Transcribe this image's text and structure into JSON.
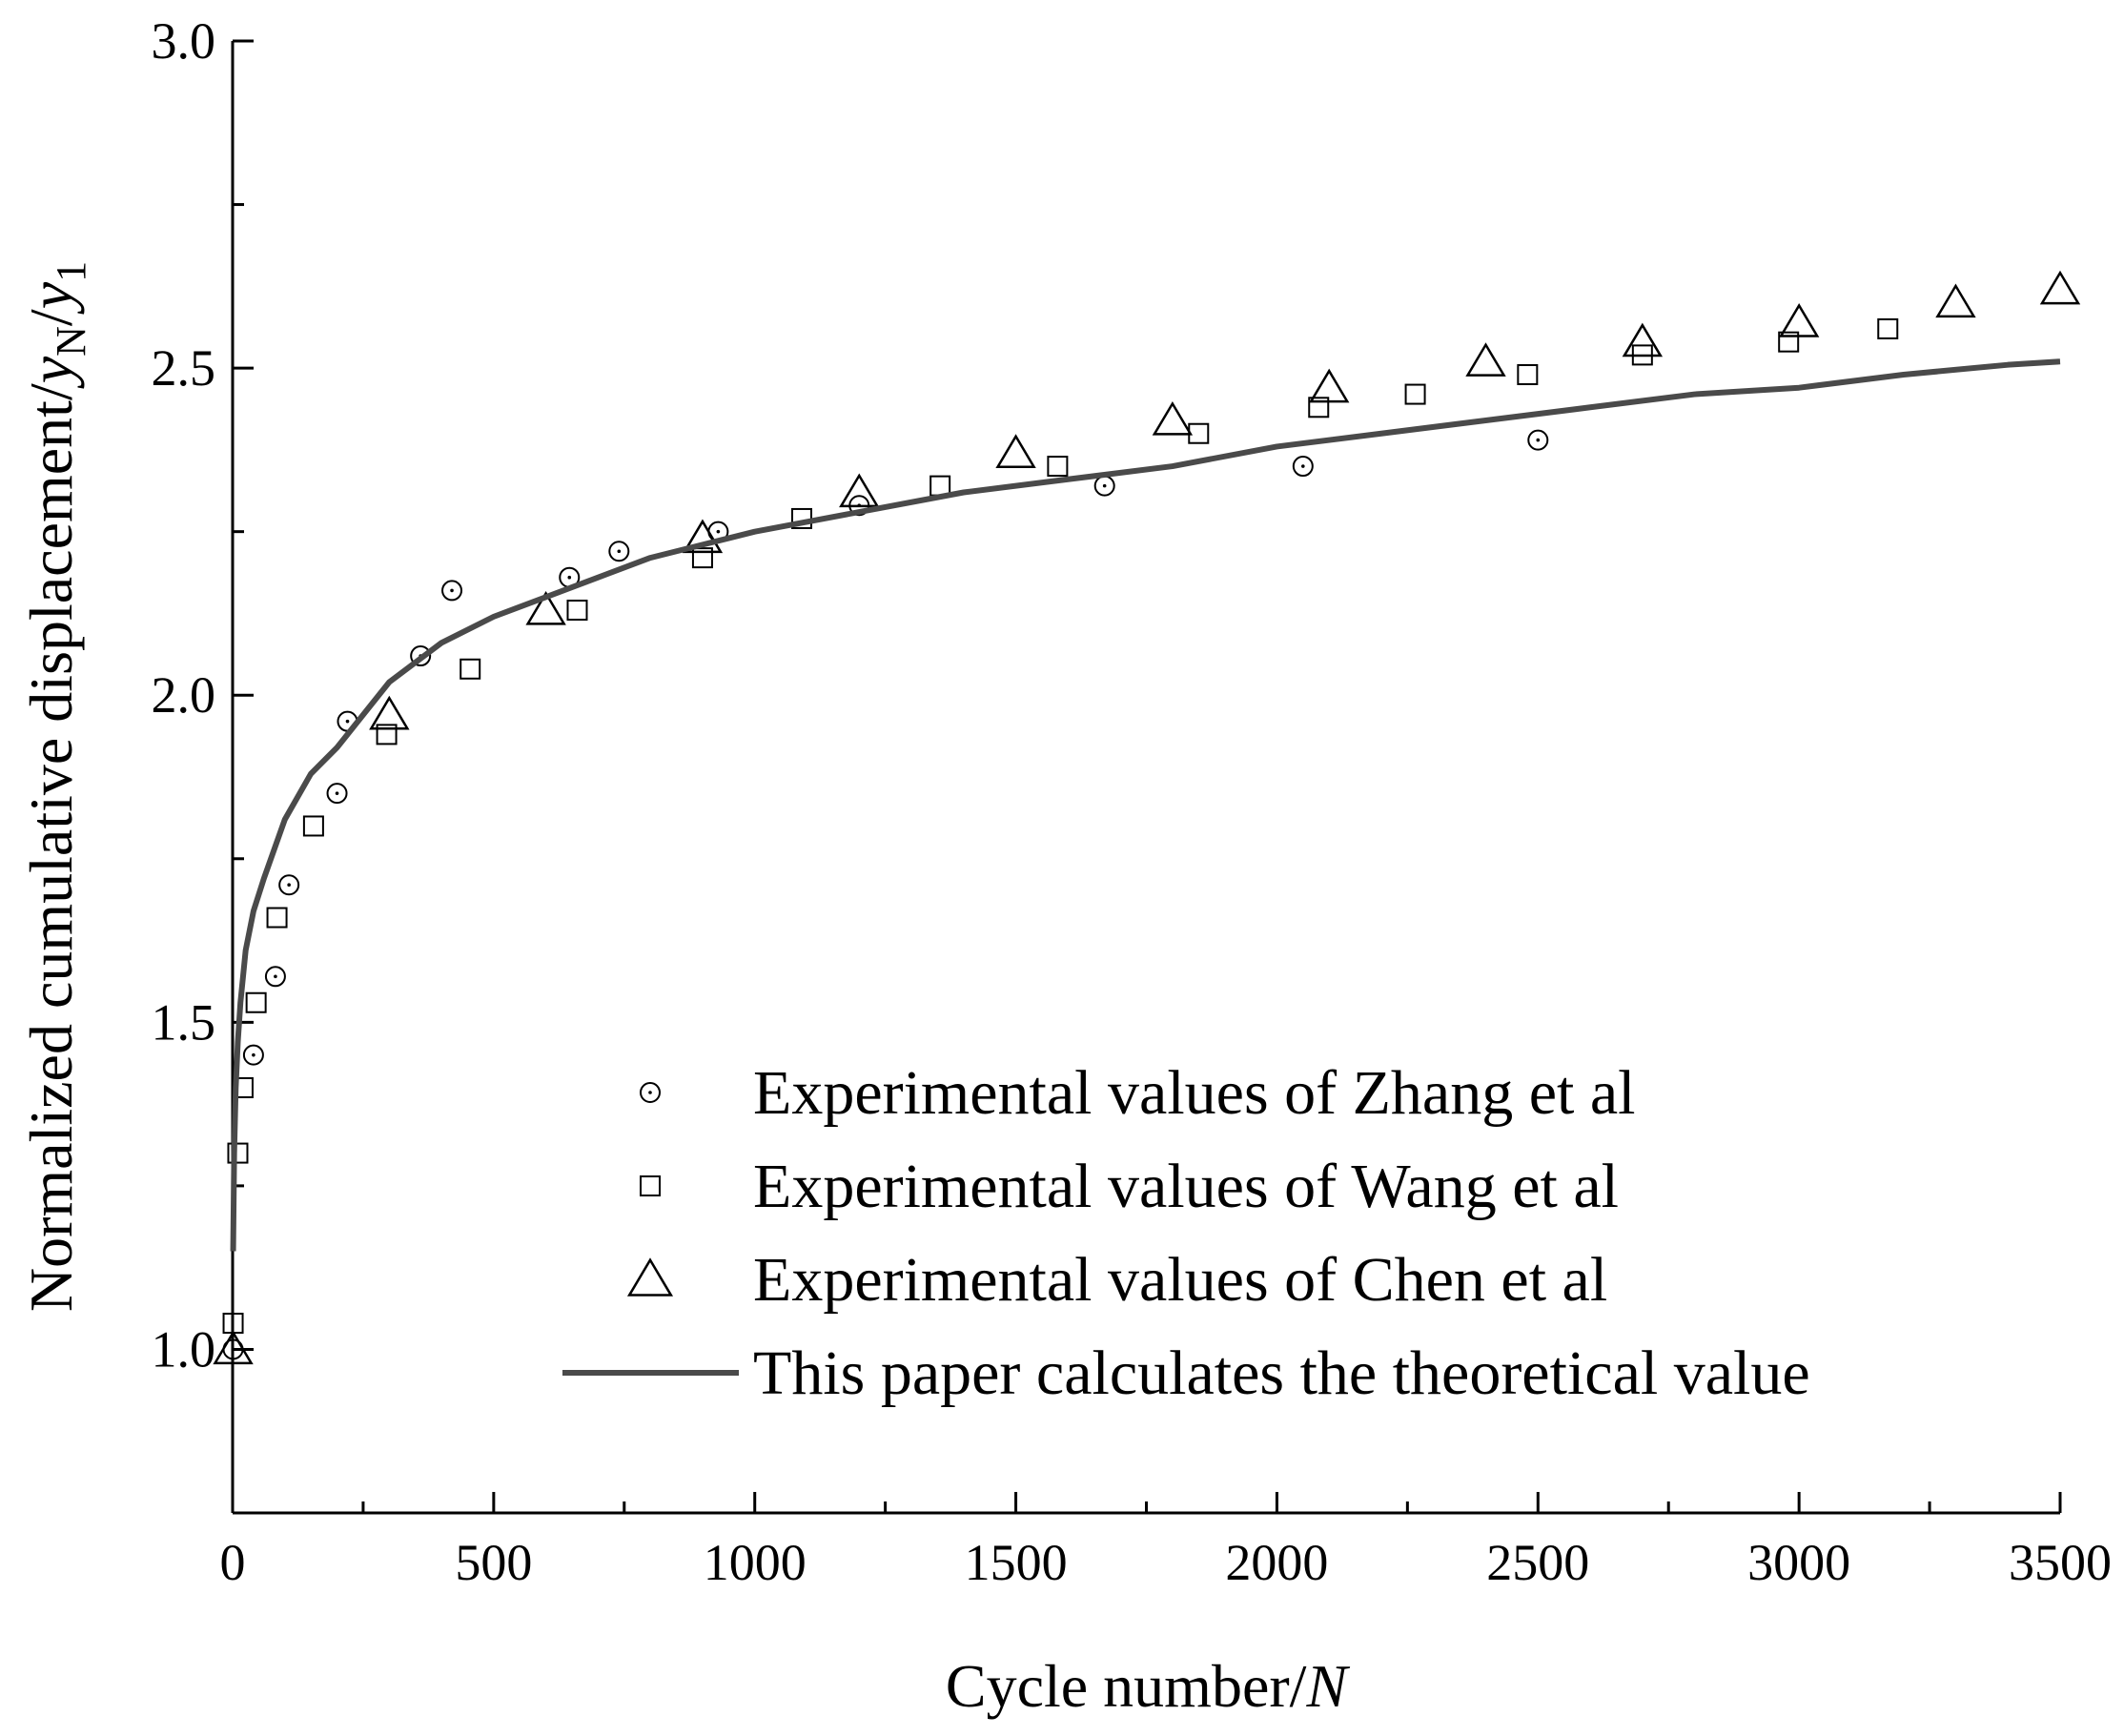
{
  "chart_data": {
    "type": "scatter",
    "title": "",
    "xlabel": "Cycle number/",
    "xlabel_var": "N",
    "ylabel": "Normalized cumulative displacement/",
    "ylabel_var_num": "y",
    "ylabel_sub_num": "N",
    "ylabel_slash": "/",
    "ylabel_var_den": "y",
    "ylabel_sub_den": "1",
    "xlim": [
      0,
      3500
    ],
    "ylim": [
      0.75,
      3.0
    ],
    "xticks": [
      "0",
      "500",
      "1000",
      "1500",
      "2000",
      "2500",
      "3000",
      "3500"
    ],
    "yticks": [
      "1.0",
      "1.5",
      "2.0",
      "2.5",
      "3.0"
    ],
    "legend_position": "bottom-right",
    "series": [
      {
        "name": "Experimental values of Zhang et al",
        "marker": "circle",
        "x": [
          1,
          40,
          82,
          108,
          200,
          220,
          360,
          420,
          645,
          740,
          930,
          1200,
          1670,
          2050,
          2500
        ],
        "y": [
          1.0,
          1.45,
          1.57,
          1.71,
          1.85,
          1.96,
          2.06,
          2.16,
          2.18,
          2.22,
          2.25,
          2.29,
          2.32,
          2.35,
          2.39
        ]
      },
      {
        "name": "Experimental values of Wang et al",
        "marker": "square",
        "x": [
          1,
          10,
          20,
          45,
          85,
          155,
          295,
          455,
          660,
          900,
          1090,
          1355,
          1580,
          1850,
          2080,
          2265,
          2480,
          2700,
          2980,
          3170
        ],
        "y": [
          1.04,
          1.3,
          1.4,
          1.53,
          1.66,
          1.8,
          1.94,
          2.04,
          2.13,
          2.21,
          2.27,
          2.32,
          2.35,
          2.4,
          2.44,
          2.46,
          2.49,
          2.52,
          2.54,
          2.56
        ]
      },
      {
        "name": "Experimental values of Chen et al",
        "marker": "triangle",
        "x": [
          1,
          300,
          600,
          900,
          1200,
          1500,
          1800,
          2100,
          2400,
          2700,
          3000,
          3300,
          3500
        ],
        "y": [
          1.0,
          1.97,
          2.13,
          2.24,
          2.31,
          2.37,
          2.42,
          2.47,
          2.51,
          2.54,
          2.57,
          2.6,
          2.62
        ]
      },
      {
        "name": "This paper calculates the theoretical value",
        "marker": "line",
        "x": [
          1,
          3,
          6,
          10,
          15,
          25,
          40,
          60,
          100,
          150,
          200,
          300,
          400,
          500,
          600,
          700,
          800,
          900,
          1000,
          1200,
          1400,
          1600,
          1800,
          2000,
          2200,
          2400,
          2600,
          2800,
          3000,
          3200,
          3400,
          3500
        ],
        "y": [
          1.15,
          1.3,
          1.4,
          1.47,
          1.53,
          1.61,
          1.67,
          1.72,
          1.81,
          1.88,
          1.92,
          2.02,
          2.08,
          2.12,
          2.15,
          2.18,
          2.21,
          2.23,
          2.25,
          2.28,
          2.31,
          2.33,
          2.35,
          2.38,
          2.4,
          2.42,
          2.44,
          2.46,
          2.47,
          2.49,
          2.505,
          2.51
        ]
      }
    ]
  },
  "colors": {
    "line": "#4a4a4a",
    "markers": "#000000"
  }
}
